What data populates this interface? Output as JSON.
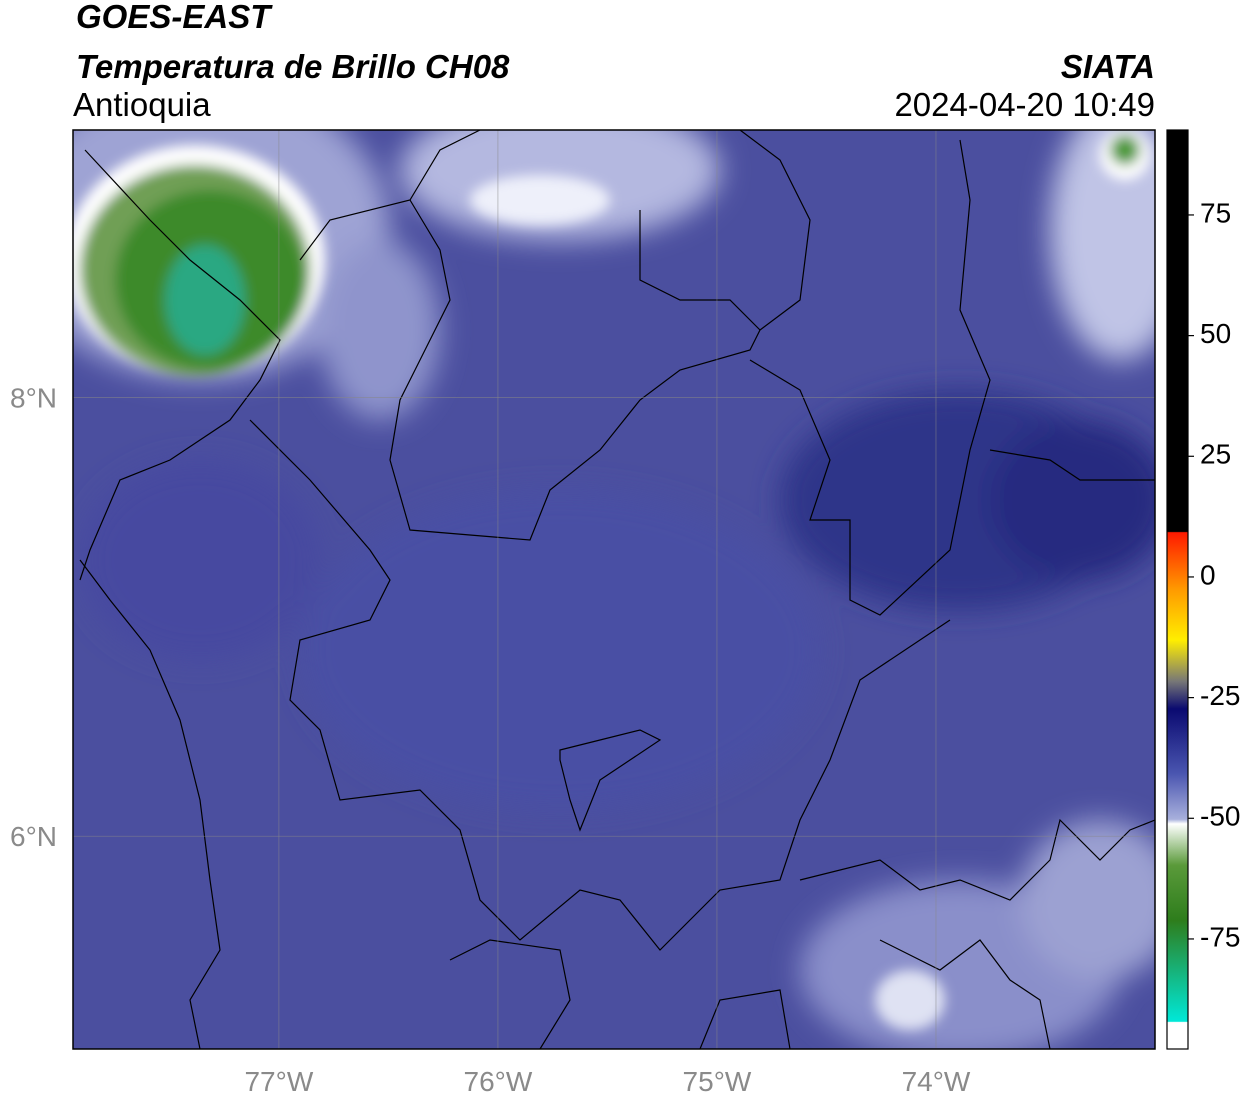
{
  "header": {
    "satellite": "GOES-EAST",
    "product": "Temperatura de Brillo CH08",
    "region": "Antioquia",
    "source": "SIATA",
    "datetime": "2024-04-20 10:49"
  },
  "map": {
    "xlim": [
      -77.94,
      -73.0
    ],
    "ylim": [
      5.03,
      9.22
    ],
    "xticks": [
      {
        "value": -77,
        "label": "77°W"
      },
      {
        "value": -76,
        "label": "76°W"
      },
      {
        "value": -75,
        "label": "75°W"
      },
      {
        "value": -74,
        "label": "74°W"
      }
    ],
    "yticks": [
      {
        "value": 8,
        "label": "8°N"
      },
      {
        "value": 6,
        "label": "6°N"
      }
    ],
    "grid": true
  },
  "colorbar": {
    "lim": [
      -97.8,
      92.6
    ],
    "ticks": [
      75,
      50,
      25,
      0,
      -25,
      -50,
      -75
    ]
  }
}
